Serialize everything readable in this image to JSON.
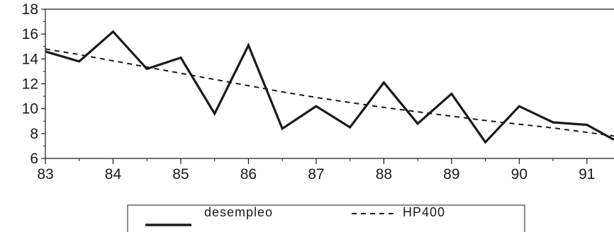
{
  "chart_data": {
    "type": "line",
    "x": [
      83,
      83.5,
      84,
      84.5,
      85,
      85.5,
      86,
      86.5,
      87,
      87.5,
      88,
      88.5,
      89,
      89.5,
      90,
      90.5,
      91,
      91.4
    ],
    "xlim": [
      83,
      91.4
    ],
    "ylim": [
      6,
      18
    ],
    "xticks": [
      "83",
      "84",
      "85",
      "86",
      "87",
      "88",
      "89",
      "90",
      "91"
    ],
    "yticks": [
      "6",
      "8",
      "10",
      "12",
      "14",
      "16",
      "18"
    ],
    "series": [
      {
        "name": "desempleo",
        "style": "solid",
        "color": "#1a1a1a",
        "values": [
          14.6,
          13.8,
          16.2,
          13.2,
          14.1,
          9.6,
          15.1,
          8.4,
          10.2,
          8.5,
          12.1,
          8.8,
          11.2,
          7.3,
          10.2,
          8.9,
          8.7,
          7.5
        ]
      },
      {
        "name": "HP400",
        "style": "dashed",
        "color": "#1a1a1a",
        "values": [
          14.8,
          14.35,
          13.85,
          13.35,
          12.85,
          12.35,
          11.85,
          11.35,
          10.9,
          10.5,
          10.1,
          9.75,
          9.4,
          9.05,
          8.75,
          8.45,
          8.1,
          7.8
        ]
      }
    ],
    "grid": false,
    "legend": "bottom",
    "title": "",
    "xlabel": "",
    "ylabel": ""
  }
}
